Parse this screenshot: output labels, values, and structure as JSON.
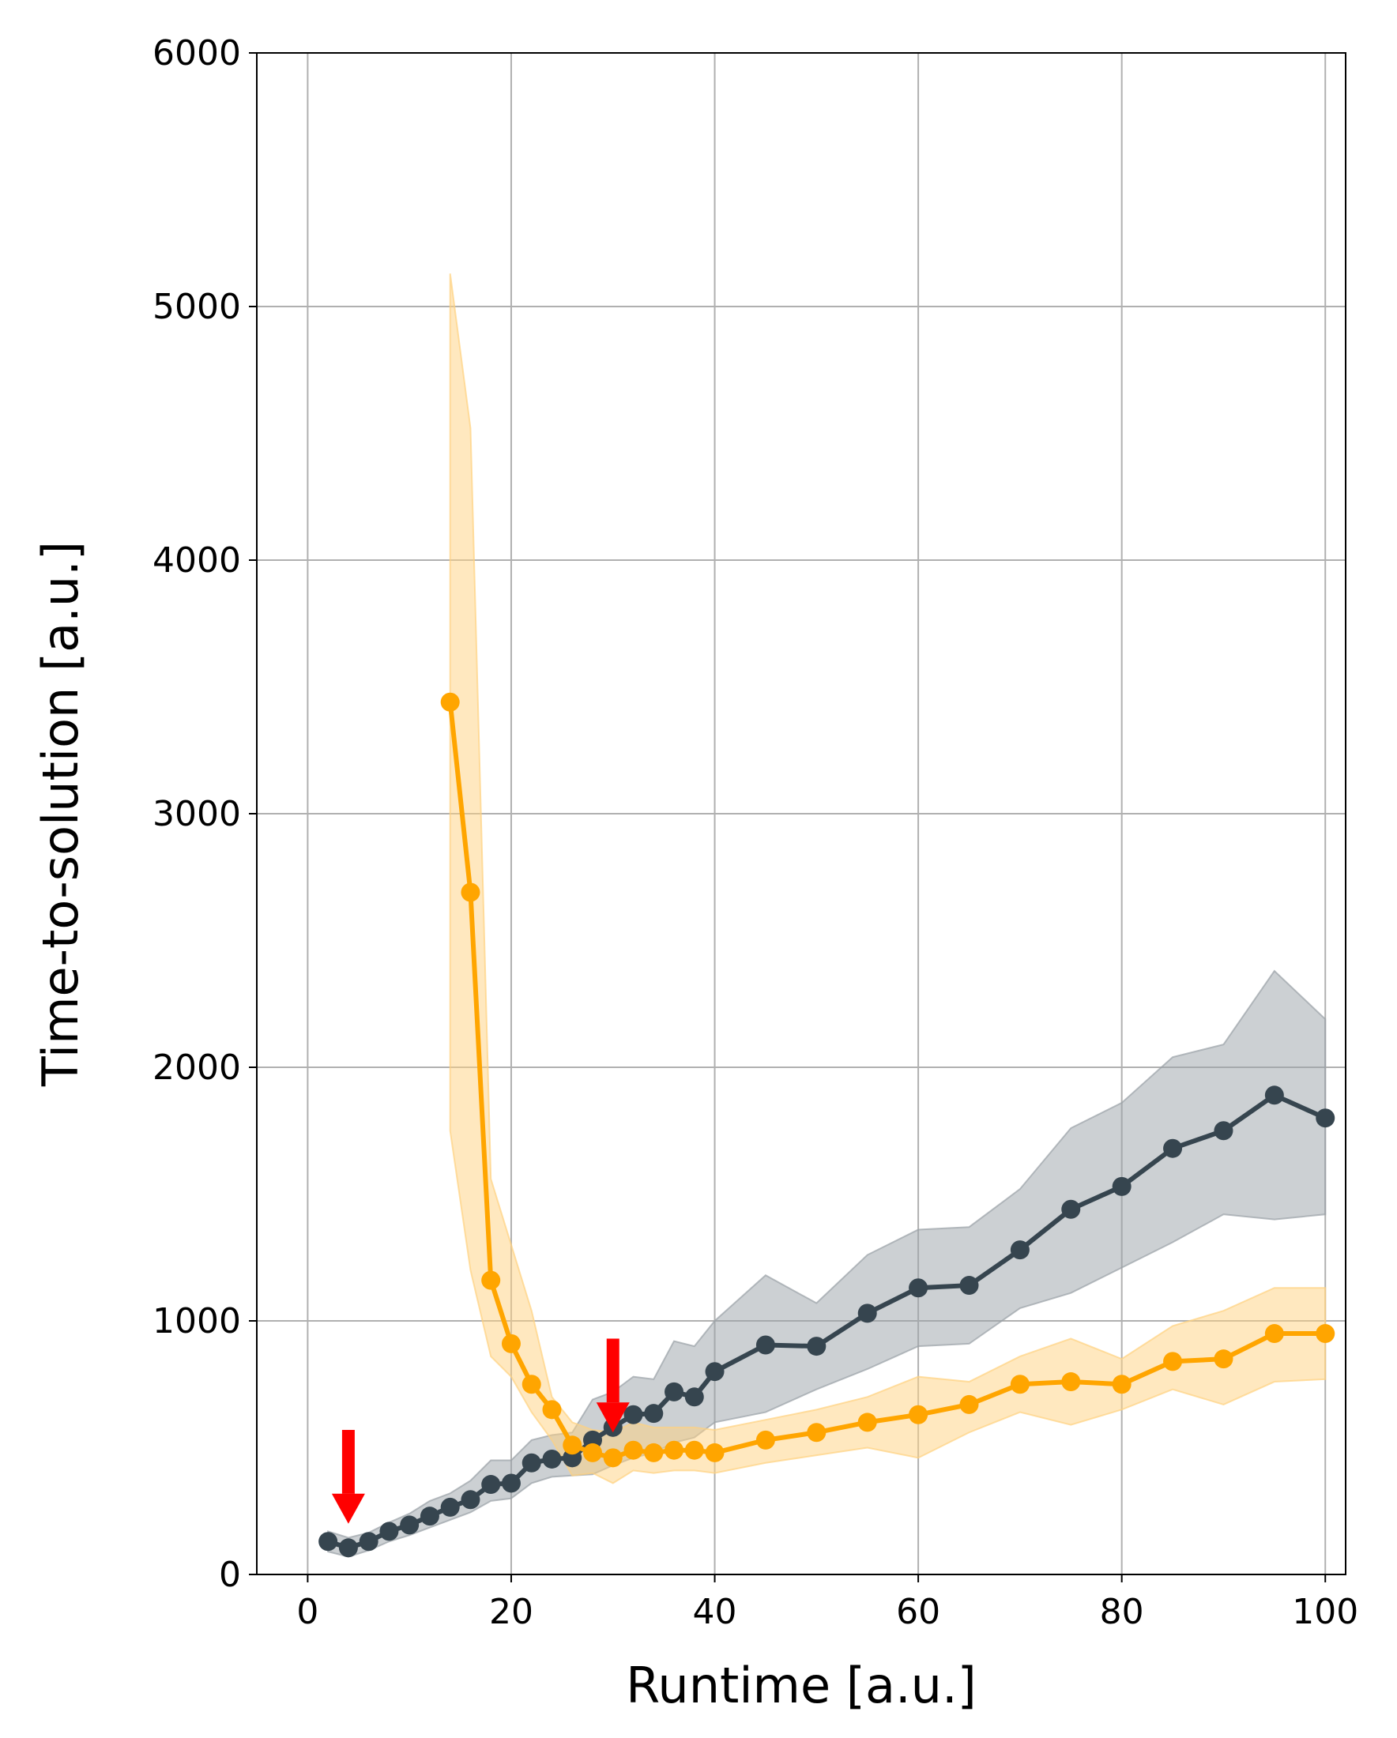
{
  "chart_data": {
    "type": "line",
    "title": "",
    "xlabel": "Runtime [a.u.]",
    "ylabel": "Time-to-solution [a.u.]",
    "xlim": [
      -5,
      102
    ],
    "ylim": [
      0,
      6000
    ],
    "x_ticks": [
      0,
      20,
      40,
      60,
      80,
      100
    ],
    "x_tick_labels": [
      "0",
      "20",
      "40",
      "60",
      "80",
      "100"
    ],
    "y_ticks": [
      0,
      1000,
      2000,
      3000,
      4000,
      5000,
      6000
    ],
    "y_tick_labels": [
      "0",
      "1000",
      "2000",
      "3000",
      "4000",
      "5000",
      "6000"
    ],
    "grid": true,
    "legend": "none",
    "series": [
      {
        "color": "#36454f",
        "band_color": "#9aa1a7",
        "x": [
          2,
          4,
          6,
          8,
          10,
          12,
          14,
          16,
          18,
          20,
          22,
          24,
          26,
          28,
          30,
          32,
          34,
          36,
          38,
          40,
          45,
          50,
          55,
          60,
          65,
          70,
          75,
          80,
          85,
          90,
          95,
          100
        ],
        "y": [
          130,
          105,
          130,
          170,
          195,
          230,
          265,
          295,
          355,
          360,
          440,
          455,
          460,
          530,
          580,
          630,
          635,
          720,
          700,
          800,
          905,
          900,
          1030,
          1130,
          1140,
          1280,
          1440,
          1530,
          1680,
          1750,
          1890,
          1800
        ],
        "lower": [
          90,
          70,
          95,
          130,
          155,
          185,
          215,
          245,
          290,
          300,
          360,
          385,
          390,
          395,
          430,
          460,
          480,
          520,
          540,
          600,
          640,
          730,
          810,
          900,
          910,
          1050,
          1110,
          1210,
          1310,
          1420,
          1400,
          1420
        ],
        "upper": [
          170,
          145,
          165,
          205,
          240,
          290,
          320,
          370,
          450,
          450,
          530,
          550,
          560,
          690,
          720,
          780,
          770,
          920,
          900,
          1000,
          1180,
          1070,
          1260,
          1360,
          1370,
          1520,
          1760,
          1860,
          2040,
          2090,
          2380,
          2190
        ]
      },
      {
        "color": "#ffa500",
        "band_color": "#ffd27f",
        "x": [
          14,
          16,
          18,
          20,
          22,
          24,
          26,
          28,
          30,
          32,
          34,
          36,
          38,
          40,
          45,
          50,
          55,
          60,
          65,
          70,
          75,
          80,
          85,
          90,
          95,
          100
        ],
        "y": [
          3440,
          2690,
          1160,
          910,
          750,
          650,
          510,
          480,
          460,
          490,
          480,
          490,
          490,
          480,
          530,
          560,
          600,
          630,
          670,
          750,
          760,
          750,
          840,
          850,
          950,
          950
        ],
        "lower": [
          1750,
          1200,
          860,
          780,
          640,
          530,
          390,
          400,
          360,
          410,
          400,
          410,
          410,
          400,
          440,
          470,
          500,
          460,
          560,
          640,
          590,
          650,
          730,
          670,
          760,
          770
        ],
        "upper": [
          5130,
          4520,
          1560,
          1300,
          1040,
          700,
          600,
          570,
          560,
          600,
          580,
          580,
          580,
          570,
          610,
          650,
          700,
          780,
          760,
          860,
          930,
          850,
          980,
          1040,
          1130,
          1130
        ]
      }
    ],
    "annotations": [
      {
        "type": "arrow-down",
        "color": "#ff0000",
        "x": 4,
        "y_tip": 200,
        "y_tail": 570
      },
      {
        "type": "arrow-down",
        "color": "#ff0000",
        "x": 30,
        "y_tip": 560,
        "y_tail": 930
      }
    ]
  }
}
